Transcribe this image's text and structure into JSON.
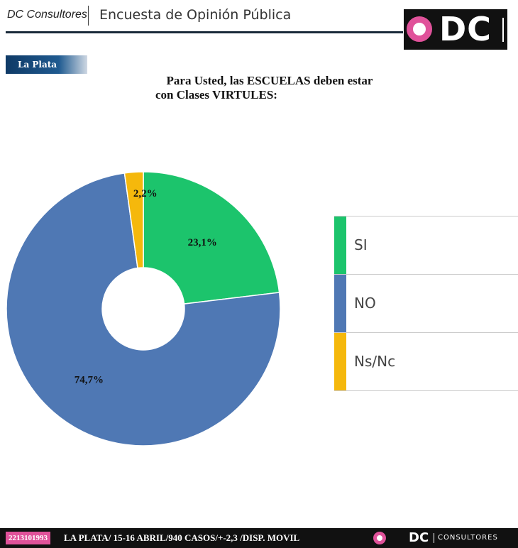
{
  "header": {
    "brand": "DC Consultores",
    "survey_title": "Encuesta de Opinión Pública",
    "logo_text": "DC"
  },
  "location_tag": "La Plata",
  "question": {
    "line1": "Para Usted, las ESCUELAS deben estar",
    "line2": "con Clases VIRTULES:"
  },
  "chart_data": {
    "type": "pie",
    "donut": true,
    "title": "Para Usted, las ESCUELAS deben estar con Clases VIRTULES:",
    "slices": [
      {
        "label": "SI",
        "value": 23.1,
        "display": "23,1%",
        "color": "#1cc46c"
      },
      {
        "label": "NO",
        "value": 74.7,
        "display": "74,7%",
        "color": "#4f78b4"
      },
      {
        "label": "Ns/Nc",
        "value": 2.2,
        "display": "2,2%",
        "color": "#f5b80c"
      }
    ],
    "legend_position": "right"
  },
  "footer": {
    "phone": "2213101993",
    "info": "LA PLATA/ 15-16 ABRIL/940 CASOS/+-2,3  /DISP. MOVIL",
    "logo_text": "DC",
    "logo_subtext": "CONSULTORES"
  },
  "colors": {
    "brand_pink": "#e0529a",
    "navy": "#0f3a66",
    "footer_bg": "#111111"
  }
}
